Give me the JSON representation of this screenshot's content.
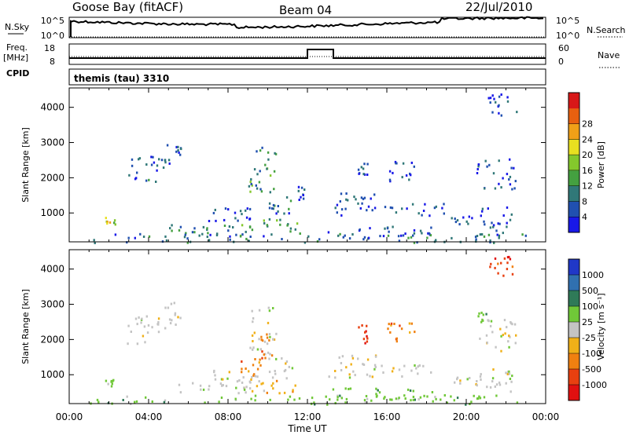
{
  "header": {
    "station": "Goose Bay (fitACF)",
    "beam": "Beam 04",
    "date": "22/Jul/2010"
  },
  "top_panels": {
    "nsky_label": "N.Sky",
    "nsky_ticks": [
      "10^5",
      "10^0"
    ],
    "nsearch_label": "N.Search",
    "nsearch_ticks": [
      "10^5",
      "10^0"
    ],
    "freq_label_1": "Freq.",
    "freq_label_2": "[MHz]",
    "freq_ticks": [
      "18",
      "8"
    ],
    "nave_label": "Nave",
    "nave_ticks": [
      "60",
      "0"
    ],
    "cpid_label": "CPID",
    "cpid_text": "themis (tau) 3310"
  },
  "chart_data": [
    {
      "type": "heatmap",
      "panel": "power",
      "ylabel": "Slant Range [km]",
      "yticks": [
        "1000",
        "2000",
        "3000",
        "4000"
      ],
      "ylim": [
        180,
        4550
      ],
      "xlim_hours": [
        0,
        24
      ],
      "colorbar_label": "Power [dB]",
      "colorbar_ticks": [
        "4",
        "8",
        "12",
        "16",
        "20",
        "24",
        "28"
      ],
      "colorbar_range": [
        0,
        30
      ],
      "colors": [
        "#1818e8",
        "#2050b0",
        "#307878",
        "#44a040",
        "#84c82c",
        "#e8e020",
        "#f0a018",
        "#e86010",
        "#d81818"
      ],
      "regions": [
        {
          "t": [
            1.6,
            2.3
          ],
          "r": [
            700,
            900
          ],
          "level": 16
        },
        {
          "t": [
            2.9,
            4.8
          ],
          "r": [
            1900,
            2700
          ],
          "level": 6
        },
        {
          "t": [
            4.8,
            5.6
          ],
          "r": [
            2400,
            3100
          ],
          "level": 5
        },
        {
          "t": [
            9.0,
            10.4
          ],
          "r": [
            1600,
            3000
          ],
          "level": 10
        },
        {
          "t": [
            5.0,
            9.0
          ],
          "r": [
            300,
            700
          ],
          "level": 9
        },
        {
          "t": [
            9.0,
            11.5
          ],
          "r": [
            500,
            900
          ],
          "level": 12
        },
        {
          "t": [
            1.0,
            23.0
          ],
          "r": [
            180,
            450
          ],
          "level": 7
        },
        {
          "t": [
            7.0,
            9.8
          ],
          "r": [
            800,
            1200
          ],
          "level": 5
        },
        {
          "t": [
            10.0,
            11.2
          ],
          "r": [
            900,
            1500
          ],
          "level": 6
        },
        {
          "t": [
            11.5,
            11.9
          ],
          "r": [
            1300,
            1900
          ],
          "level": 4
        },
        {
          "t": [
            13.0,
            19.0
          ],
          "r": [
            950,
            1300
          ],
          "level": 5
        },
        {
          "t": [
            13.5,
            15.5
          ],
          "r": [
            1300,
            1600
          ],
          "level": 5
        },
        {
          "t": [
            13.0,
            18.5
          ],
          "r": [
            300,
            650
          ],
          "level": 6
        },
        {
          "t": [
            14.5,
            15.1
          ],
          "r": [
            1900,
            2500
          ],
          "level": 4
        },
        {
          "t": [
            16.0,
            17.4
          ],
          "r": [
            1900,
            2500
          ],
          "level": 5
        },
        {
          "t": [
            19.2,
            20.5
          ],
          "r": [
            700,
            1000
          ],
          "level": 5
        },
        {
          "t": [
            20.5,
            22.5
          ],
          "r": [
            1700,
            2600
          ],
          "level": 5
        },
        {
          "t": [
            20.5,
            22.3
          ],
          "r": [
            400,
            1200
          ],
          "level": 5
        },
        {
          "t": [
            21.0,
            22.5
          ],
          "r": [
            3800,
            4400
          ],
          "level": 4
        }
      ]
    },
    {
      "type": "heatmap",
      "panel": "velocity",
      "ylabel": "Slant Range [km]",
      "yticks": [
        "1000",
        "2000",
        "3000",
        "4000"
      ],
      "ylim": [
        180,
        4550
      ],
      "xlim_hours": [
        0,
        24
      ],
      "xticks": [
        "00:00",
        "04:00",
        "08:00",
        "12:00",
        "16:00",
        "20:00",
        "00:00"
      ],
      "xlabel": "Time UT",
      "colorbar_label": "Velocity [m s⁻¹]",
      "colorbar_ticks": [
        "1000",
        "500",
        "100",
        "25",
        "-25",
        "-100",
        "-500",
        "-1000"
      ],
      "colors": [
        "#2038c8",
        "#3070b0",
        "#2f7a58",
        "#70c838",
        "#c4c4c4",
        "#f0b018",
        "#f08010",
        "#e84010",
        "#e01010"
      ],
      "regions": [
        {
          "t": [
            1.6,
            2.3
          ],
          "r": [
            700,
            900
          ],
          "cat": 3
        },
        {
          "t": [
            2.9,
            4.8
          ],
          "r": [
            1900,
            2700
          ],
          "cat": 4
        },
        {
          "t": [
            4.8,
            5.6
          ],
          "r": [
            2400,
            3100
          ],
          "cat": 4
        },
        {
          "t": [
            9.0,
            10.4
          ],
          "r": [
            1600,
            3000
          ],
          "cat": 4
        },
        {
          "t": [
            8.5,
            9.6
          ],
          "r": [
            950,
            1500
          ],
          "cat": 6
        },
        {
          "t": [
            9.6,
            10.3
          ],
          "r": [
            1500,
            2200
          ],
          "cat": 6
        },
        {
          "t": [
            5.0,
            9.0
          ],
          "r": [
            500,
            800
          ],
          "cat": 4
        },
        {
          "t": [
            9.0,
            11.5
          ],
          "r": [
            500,
            900
          ],
          "cat": 5
        },
        {
          "t": [
            1.0,
            23.0
          ],
          "r": [
            180,
            450
          ],
          "cat": 3
        },
        {
          "t": [
            7.0,
            9.8
          ],
          "r": [
            800,
            1200
          ],
          "cat": 4
        },
        {
          "t": [
            10.0,
            11.2
          ],
          "r": [
            900,
            1500
          ],
          "cat": 4
        },
        {
          "t": [
            13.0,
            19.0
          ],
          "r": [
            950,
            1300
          ],
          "cat": 4
        },
        {
          "t": [
            13.5,
            15.5
          ],
          "r": [
            1300,
            1600
          ],
          "cat": 4
        },
        {
          "t": [
            13.0,
            18.5
          ],
          "r": [
            300,
            650
          ],
          "cat": 3
        },
        {
          "t": [
            14.5,
            15.1
          ],
          "r": [
            1900,
            2500
          ],
          "cat": 7
        },
        {
          "t": [
            16.0,
            17.4
          ],
          "r": [
            1900,
            2500
          ],
          "cat": 6
        },
        {
          "t": [
            19.2,
            20.5
          ],
          "r": [
            700,
            1000
          ],
          "cat": 4
        },
        {
          "t": [
            20.5,
            22.5
          ],
          "r": [
            1700,
            2600
          ],
          "cat": 4
        },
        {
          "t": [
            20.5,
            21.3
          ],
          "r": [
            2500,
            2800
          ],
          "cat": 3
        },
        {
          "t": [
            20.5,
            22.3
          ],
          "r": [
            400,
            1200
          ],
          "cat": 4
        },
        {
          "t": [
            21.0,
            22.5
          ],
          "r": [
            3800,
            4400
          ],
          "cat": 7
        }
      ]
    }
  ]
}
